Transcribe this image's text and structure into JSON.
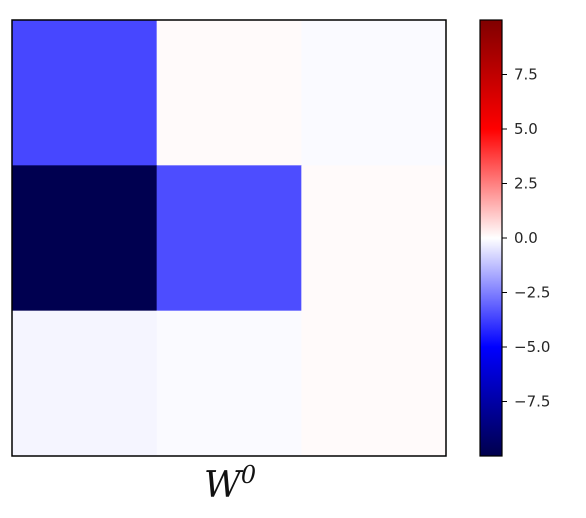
{
  "chart_data": {
    "type": "heatmap",
    "rows": 3,
    "cols": 3,
    "values": [
      [
        -3.6,
        0.1,
        -0.1
      ],
      [
        -9.9,
        -3.5,
        0.1
      ],
      [
        -0.2,
        -0.1,
        0.1
      ]
    ],
    "colormap": "seismic",
    "color_range": [
      -10,
      10
    ],
    "colorbar_ticks": [
      -7.5,
      -5.0,
      -2.5,
      0.0,
      2.5,
      5.0,
      7.5
    ],
    "colorbar_tick_labels": [
      "−7.5",
      "−5.0",
      "−2.5",
      "0.0",
      "2.5",
      "5.0",
      "7.5"
    ],
    "xlabel": {
      "base": "W",
      "superscript": "0"
    },
    "axis_ticks": "none"
  }
}
